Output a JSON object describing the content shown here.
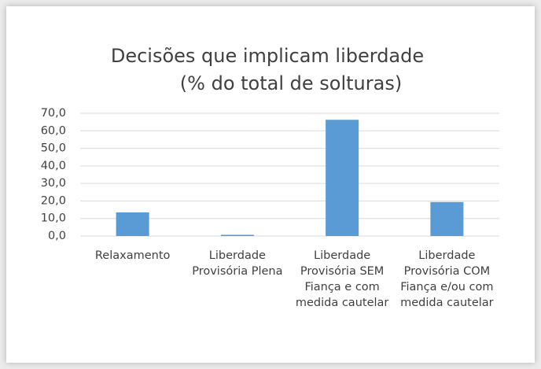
{
  "chart_data": {
    "type": "bar",
    "title": "Decisões que implicam liberdade",
    "subtitle": "(% do total de solturas)",
    "categories": [
      "Relaxamento",
      "Liberdade Provisória Plena",
      "Liberdade Provisória SEM Fiança e com medida cautelar",
      "Liberdade Provisória COM Fiança e/ou com medida cautelar"
    ],
    "values": [
      13.5,
      0.7,
      66.3,
      19.4
    ],
    "color": "#5b9bd5",
    "ylim": [
      0,
      70
    ],
    "yticks": [
      {
        "value": 0,
        "label": "0,0"
      },
      {
        "value": 10,
        "label": "10,0"
      },
      {
        "value": 20,
        "label": "20,0"
      },
      {
        "value": 30,
        "label": "30,0"
      },
      {
        "value": 40,
        "label": "40,0"
      },
      {
        "value": 50,
        "label": "50,0"
      },
      {
        "value": 60,
        "label": "60,0"
      },
      {
        "value": 70,
        "label": "70,0"
      }
    ],
    "grid": true
  }
}
